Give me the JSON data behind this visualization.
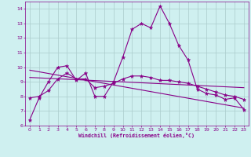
{
  "xlabel": "Windchill (Refroidissement éolien,°C)",
  "bg_color": "#cff0f0",
  "line_color": "#880088",
  "grid_color": "#aacccc",
  "xlim": [
    -0.5,
    23.5
  ],
  "ylim": [
    6,
    14.5
  ],
  "yticks": [
    6,
    7,
    8,
    9,
    10,
    11,
    12,
    13,
    14
  ],
  "xticks": [
    0,
    1,
    2,
    3,
    4,
    5,
    6,
    7,
    8,
    9,
    10,
    11,
    12,
    13,
    14,
    15,
    16,
    17,
    18,
    19,
    20,
    21,
    22,
    23
  ],
  "series1_x": [
    0,
    1,
    2,
    3,
    4,
    5,
    6,
    7,
    8,
    9,
    10,
    11,
    12,
    13,
    14,
    15,
    16,
    17,
    18,
    19,
    20,
    21,
    22,
    23
  ],
  "series1_y": [
    6.4,
    7.9,
    9.0,
    10.0,
    10.1,
    9.1,
    9.6,
    8.0,
    8.0,
    9.0,
    10.7,
    12.6,
    13.0,
    12.7,
    14.2,
    13.0,
    11.5,
    10.5,
    8.5,
    8.2,
    8.1,
    7.8,
    7.9,
    7.1
  ],
  "series2_x": [
    0,
    1,
    2,
    3,
    4,
    5,
    6,
    7,
    8,
    9,
    10,
    11,
    12,
    13,
    14,
    15,
    16,
    17,
    18,
    19,
    20,
    21,
    22,
    23
  ],
  "series2_y": [
    7.9,
    8.0,
    8.4,
    9.2,
    9.6,
    9.2,
    9.2,
    8.6,
    8.7,
    8.9,
    9.2,
    9.4,
    9.4,
    9.3,
    9.1,
    9.1,
    9.0,
    8.9,
    8.7,
    8.5,
    8.3,
    8.1,
    8.0,
    7.8
  ],
  "series3_x": [
    0,
    23
  ],
  "series3_y": [
    9.3,
    8.6
  ],
  "series4_x": [
    0,
    23
  ],
  "series4_y": [
    9.8,
    7.2
  ]
}
